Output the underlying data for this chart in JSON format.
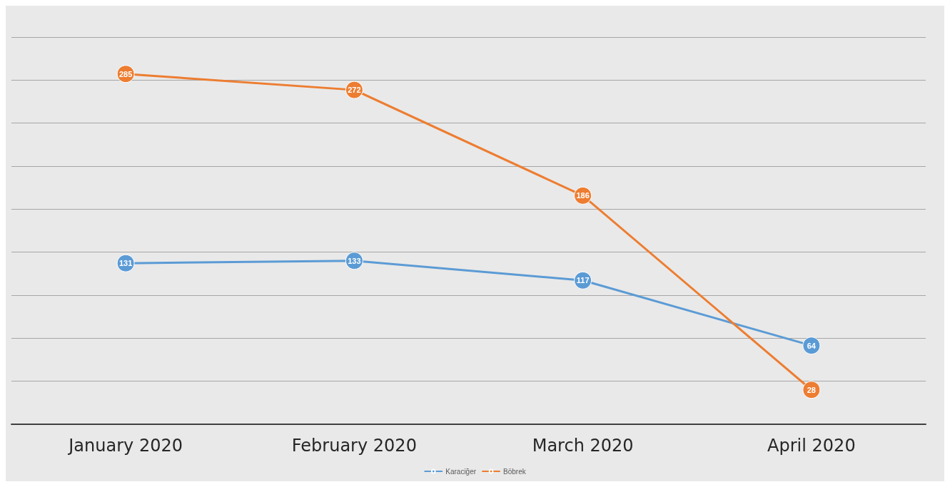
{
  "chart_data": {
    "type": "line",
    "categories": [
      "January 2020",
      "February 2020",
      "March 2020",
      "April 2020"
    ],
    "series": [
      {
        "name": "Karaciğer",
        "color": "#5b9bd5",
        "values": [
          131,
          133,
          117,
          64
        ]
      },
      {
        "name": "Böbrek",
        "color": "#ed7d31",
        "values": [
          285,
          272,
          186,
          28
        ]
      }
    ],
    "ylim": [
      0,
      315
    ],
    "yticks": [
      {
        "value": 0,
        "label": null
      },
      {
        "value": 35,
        "label": null
      },
      {
        "value": 70,
        "label": null
      },
      {
        "value": 105,
        "label": null
      },
      {
        "value": 140,
        "label": null
      },
      {
        "value": 175,
        "label": null
      },
      {
        "value": 210,
        "label": null
      },
      {
        "value": 245,
        "label": null
      },
      {
        "value": 280,
        "label": null
      },
      {
        "value": 315,
        "label": null
      }
    ],
    "tick_labels": "x",
    "grid": "y",
    "legend": "bottom",
    "marker": "circle",
    "line_style": "solid",
    "data_labels": true
  }
}
